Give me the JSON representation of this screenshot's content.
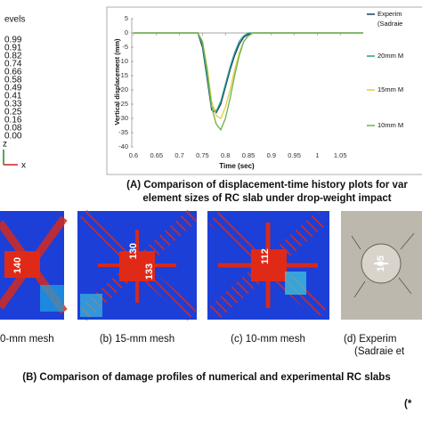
{
  "contour_legend": {
    "title": "evels",
    "levels": [
      "0.99",
      "0.91",
      "0.82",
      "0.74",
      "0.66",
      "0.58",
      "0.49",
      "0.41",
      "0.33",
      "0.25",
      "0.16",
      "0.08",
      "0.00"
    ],
    "axis_z": "z",
    "axis_x": "x"
  },
  "chart_data": {
    "type": "line",
    "x_label": "Time (sec)",
    "y_label": "Vertical displacement (mm)",
    "x": [
      0.6,
      0.74,
      0.75,
      0.76,
      0.77,
      0.78,
      0.79,
      0.8,
      0.81,
      0.82,
      0.83,
      0.84,
      0.85,
      0.86,
      0.9,
      1.1
    ],
    "series": [
      {
        "name": "Experim",
        "color": "#1f3a5f",
        "values": [
          0,
          0,
          -5,
          -16,
          -27,
          -28,
          -25,
          -19,
          -13,
          -8,
          -4,
          -1.5,
          -0.5,
          0,
          0,
          0
        ]
      },
      {
        "name": "20mm M",
        "color": "#2a9d8f",
        "values": [
          0,
          0,
          -4,
          -15,
          -26,
          -27.5,
          -24,
          -18,
          -12,
          -7,
          -3,
          -1,
          0,
          0,
          0,
          0
        ]
      },
      {
        "name": "15mm M",
        "color": "#e3cf3c",
        "values": [
          0,
          0,
          -3,
          -12,
          -24,
          -29,
          -30,
          -26,
          -20,
          -13,
          -7,
          -3,
          -1,
          0,
          0,
          0
        ]
      },
      {
        "name": "10mm M",
        "color": "#6bb34a",
        "values": [
          0,
          0,
          -3,
          -13,
          -26,
          -32,
          -34,
          -30,
          -23,
          -15,
          -8,
          -3,
          -1,
          0,
          0,
          0
        ]
      }
    ],
    "legend_note": "(Sadraie",
    "xlim": [
      0.6,
      1.1
    ],
    "xticks": [
      0.6,
      0.65,
      0.7,
      0.75,
      0.8,
      0.85,
      0.9,
      0.95,
      1,
      1.05
    ],
    "ylim": [
      -40,
      5
    ],
    "yticks": [
      5,
      0,
      -5,
      -10,
      -15,
      -20,
      -25,
      -30,
      -35,
      -40
    ],
    "legend": "right"
  },
  "caption_a": [
    "(A) Comparison of displacement-time history plots for var",
    "element sizes of RC slab under drop-weight impact"
  ],
  "panels": [
    {
      "label": "0-mm mesh",
      "marks": [
        "140"
      ]
    },
    {
      "label": "(b) 15-mm mesh",
      "marks": [
        "130",
        "133"
      ]
    },
    {
      "label": "(c) 10-mm mesh",
      "marks": [
        "112"
      ]
    },
    {
      "label": "(d) Experim",
      "sublabel": "(Sadraie et",
      "marks": [
        "105"
      ]
    }
  ],
  "caption_b": "(B) Comparison of damage profiles of numerical and experimental RC slabs",
  "footnote": "(*"
}
